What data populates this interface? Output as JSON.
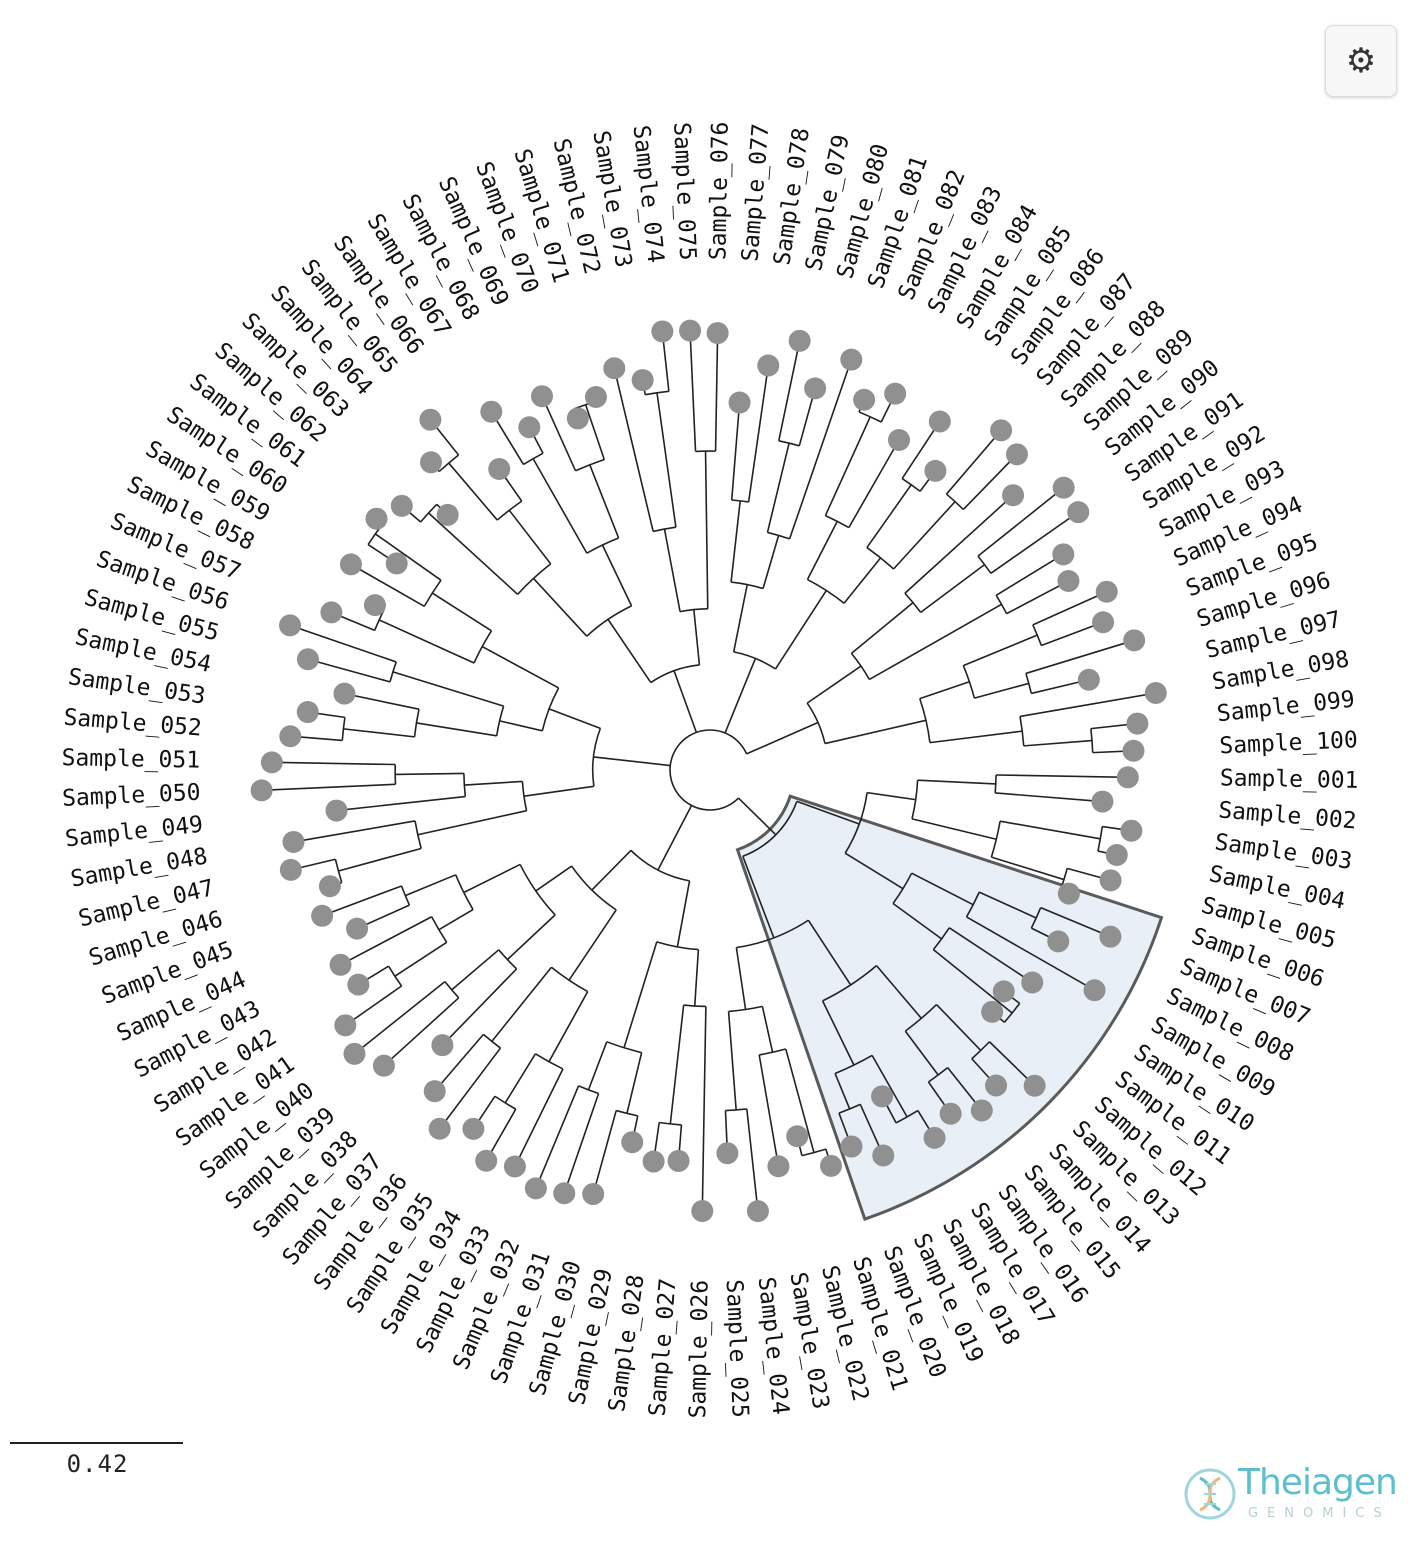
{
  "toolbar": {
    "settings_icon": "gear-icon",
    "settings_glyph": "⚙"
  },
  "scale_bar": {
    "label": "0.42"
  },
  "logo": {
    "name": "Theiagen",
    "subtitle": "GENOMICS",
    "icon": "dna-helix-icon"
  },
  "colors": {
    "branch": "#222222",
    "node": "#909090",
    "highlight_fill": "#e8eff7",
    "highlight_stroke": "#5a5a5a",
    "brand": "#5dbfcc"
  },
  "tree": {
    "layout": "circular",
    "highlighted_clade": [
      "Sample_001",
      "Sample_002",
      "Sample_003",
      "Sample_004",
      "Sample_005",
      "Sample_006",
      "Sample_007",
      "Sample_008",
      "Sample_009",
      "Sample_010",
      "Sample_011",
      "Sample_012",
      "Sample_013",
      "Sample_014",
      "Sample_015",
      "Sample_016",
      "Sample_017",
      "Sample_018",
      "Sample_019",
      "Sample_020",
      "Sample_021",
      "Sample_022",
      "Sample_023",
      "Sample_024",
      "Sample_025"
    ],
    "leaves": [
      "Sample_001",
      "Sample_002",
      "Sample_003",
      "Sample_004",
      "Sample_005",
      "Sample_006",
      "Sample_007",
      "Sample_008",
      "Sample_009",
      "Sample_010",
      "Sample_011",
      "Sample_012",
      "Sample_013",
      "Sample_014",
      "Sample_015",
      "Sample_016",
      "Sample_017",
      "Sample_018",
      "Sample_019",
      "Sample_020",
      "Sample_021",
      "Sample_022",
      "Sample_023",
      "Sample_024",
      "Sample_025",
      "Sample_026",
      "Sample_027",
      "Sample_028",
      "Sample_029",
      "Sample_030",
      "Sample_031",
      "Sample_032",
      "Sample_033",
      "Sample_034",
      "Sample_035",
      "Sample_036",
      "Sample_037",
      "Sample_038",
      "Sample_039",
      "Sample_040",
      "Sample_041",
      "Sample_042",
      "Sample_043",
      "Sample_044",
      "Sample_045",
      "Sample_046",
      "Sample_047",
      "Sample_048",
      "Sample_049",
      "Sample_050",
      "Sample_051",
      "Sample_052",
      "Sample_053",
      "Sample_054",
      "Sample_055",
      "Sample_056",
      "Sample_057",
      "Sample_058",
      "Sample_059",
      "Sample_060",
      "Sample_061",
      "Sample_062",
      "Sample_063",
      "Sample_064",
      "Sample_065",
      "Sample_066",
      "Sample_067",
      "Sample_068",
      "Sample_069",
      "Sample_070",
      "Sample_071",
      "Sample_072",
      "Sample_073",
      "Sample_074",
      "Sample_075",
      "Sample_076",
      "Sample_077",
      "Sample_078",
      "Sample_079",
      "Sample_080",
      "Sample_081",
      "Sample_082",
      "Sample_083",
      "Sample_084",
      "Sample_085",
      "Sample_086",
      "Sample_087",
      "Sample_088",
      "Sample_089",
      "Sample_090",
      "Sample_091",
      "Sample_092",
      "Sample_093",
      "Sample_094",
      "Sample_095",
      "Sample_096",
      "Sample_097",
      "Sample_098",
      "Sample_099",
      "Sample_100"
    ]
  }
}
